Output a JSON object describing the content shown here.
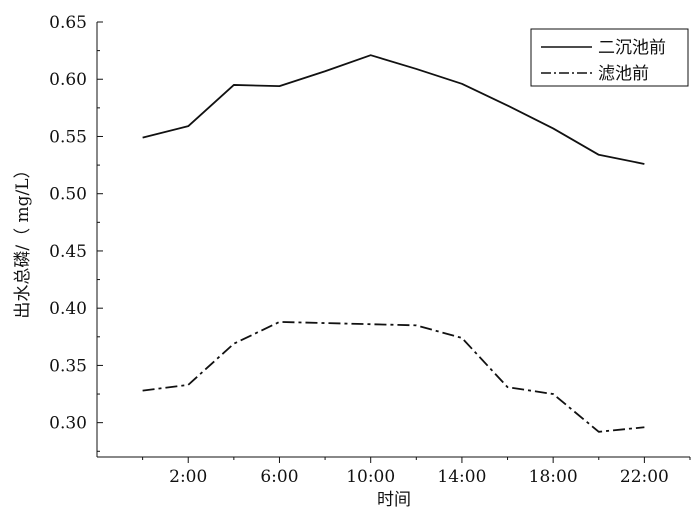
{
  "chart_data": {
    "type": "line",
    "title": "",
    "xlabel": "时间",
    "ylabel": "出水总磷/（ mg/L）",
    "x_hours": [
      0,
      2,
      4,
      6,
      8,
      10,
      12,
      14,
      16,
      18,
      20,
      22
    ],
    "x_ticks": [
      2,
      6,
      10,
      14,
      18,
      22
    ],
    "x_tick_labels": [
      "2:00",
      "6:00",
      "10:00",
      "14:00",
      "18:00",
      "22:00"
    ],
    "xlim": [
      -2,
      24
    ],
    "ylim": [
      0.27,
      0.65
    ],
    "y_ticks": [
      0.3,
      0.35,
      0.4,
      0.45,
      0.5,
      0.55,
      0.6,
      0.65
    ],
    "y_tick_labels": [
      "0.30",
      "0.35",
      "0.40",
      "0.45",
      "0.50",
      "0.55",
      "0.60",
      "0.65"
    ],
    "legend_position": "top-right",
    "grid": false,
    "series": [
      {
        "name": "二沉池前",
        "line_style": "solid",
        "color": "#111111",
        "values": [
          0.549,
          0.559,
          0.595,
          0.594,
          0.607,
          0.621,
          0.609,
          0.596,
          0.577,
          0.557,
          0.534,
          0.526
        ]
      },
      {
        "name": "滤池前",
        "line_style": "dash-dot",
        "color": "#111111",
        "values": [
          0.328,
          0.333,
          0.369,
          0.388,
          0.387,
          0.386,
          0.385,
          0.374,
          0.331,
          0.325,
          0.292,
          0.296
        ]
      }
    ]
  }
}
